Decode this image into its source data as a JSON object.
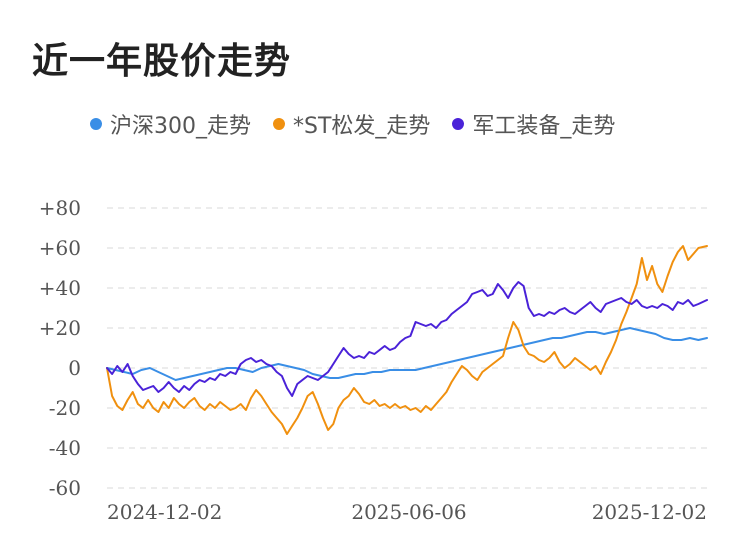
{
  "chart_data": {
    "type": "line",
    "title": "近一年股价走势",
    "xlabel": "",
    "ylabel": "",
    "ylim": [
      -60,
      80
    ],
    "yticks": [
      80,
      60,
      40,
      20,
      0,
      -20,
      -40,
      -60
    ],
    "ytick_labels": [
      "+80",
      "+60",
      "+40",
      "+20",
      "0",
      "-20",
      "-40",
      "-60"
    ],
    "xtick_labels": [
      "2024-12-02",
      "2025-06-06",
      "2025-12-02"
    ],
    "grid": true,
    "legend_position": "top-left",
    "series": [
      {
        "name": "沪深300_走势",
        "color": "#3a8ee6",
        "points": [
          [
            0,
            0
          ],
          [
            5,
            -1
          ],
          [
            10,
            -2
          ],
          [
            15,
            -3
          ],
          [
            20,
            -1
          ],
          [
            25,
            0
          ],
          [
            30,
            -2
          ],
          [
            35,
            -4
          ],
          [
            40,
            -6
          ],
          [
            45,
            -5
          ],
          [
            50,
            -4
          ],
          [
            55,
            -3
          ],
          [
            60,
            -2
          ],
          [
            65,
            -1
          ],
          [
            70,
            0
          ],
          [
            75,
            0
          ],
          [
            80,
            -1
          ],
          [
            85,
            -2
          ],
          [
            90,
            0
          ],
          [
            95,
            1
          ],
          [
            100,
            2
          ],
          [
            105,
            1
          ],
          [
            110,
            0
          ],
          [
            115,
            -1
          ],
          [
            120,
            -3
          ],
          [
            125,
            -4
          ],
          [
            130,
            -5
          ],
          [
            135,
            -5
          ],
          [
            140,
            -4
          ],
          [
            145,
            -3
          ],
          [
            150,
            -3
          ],
          [
            155,
            -2
          ],
          [
            160,
            -2
          ],
          [
            165,
            -1
          ],
          [
            170,
            -1
          ],
          [
            175,
            -1
          ],
          [
            180,
            -1
          ],
          [
            185,
            0
          ],
          [
            190,
            1
          ],
          [
            195,
            2
          ],
          [
            200,
            3
          ],
          [
            205,
            4
          ],
          [
            210,
            5
          ],
          [
            215,
            6
          ],
          [
            220,
            7
          ],
          [
            225,
            8
          ],
          [
            230,
            9
          ],
          [
            235,
            10
          ],
          [
            240,
            11
          ],
          [
            245,
            12
          ],
          [
            250,
            13
          ],
          [
            255,
            14
          ],
          [
            260,
            15
          ],
          [
            265,
            15
          ],
          [
            270,
            16
          ],
          [
            275,
            17
          ],
          [
            280,
            18
          ],
          [
            285,
            18
          ],
          [
            290,
            17
          ],
          [
            295,
            18
          ],
          [
            300,
            19
          ],
          [
            305,
            20
          ],
          [
            310,
            19
          ],
          [
            315,
            18
          ],
          [
            320,
            17
          ],
          [
            325,
            15
          ],
          [
            330,
            14
          ],
          [
            335,
            14
          ],
          [
            340,
            15
          ],
          [
            345,
            14
          ],
          [
            350,
            15
          ]
        ]
      },
      {
        "name": "*ST松发_走势",
        "color": "#f0900f",
        "points": [
          [
            0,
            0
          ],
          [
            3,
            -14
          ],
          [
            6,
            -19
          ],
          [
            9,
            -21
          ],
          [
            12,
            -16
          ],
          [
            15,
            -12
          ],
          [
            18,
            -18
          ],
          [
            21,
            -20
          ],
          [
            24,
            -16
          ],
          [
            27,
            -20
          ],
          [
            30,
            -22
          ],
          [
            33,
            -17
          ],
          [
            36,
            -20
          ],
          [
            39,
            -15
          ],
          [
            42,
            -18
          ],
          [
            45,
            -20
          ],
          [
            48,
            -17
          ],
          [
            51,
            -15
          ],
          [
            54,
            -19
          ],
          [
            57,
            -21
          ],
          [
            60,
            -18
          ],
          [
            63,
            -20
          ],
          [
            66,
            -17
          ],
          [
            69,
            -19
          ],
          [
            72,
            -21
          ],
          [
            75,
            -20
          ],
          [
            78,
            -18
          ],
          [
            81,
            -21
          ],
          [
            84,
            -15
          ],
          [
            87,
            -11
          ],
          [
            90,
            -14
          ],
          [
            93,
            -18
          ],
          [
            96,
            -22
          ],
          [
            99,
            -25
          ],
          [
            102,
            -28
          ],
          [
            105,
            -33
          ],
          [
            108,
            -29
          ],
          [
            111,
            -25
          ],
          [
            114,
            -20
          ],
          [
            117,
            -14
          ],
          [
            120,
            -12
          ],
          [
            123,
            -18
          ],
          [
            126,
            -25
          ],
          [
            129,
            -31
          ],
          [
            132,
            -28
          ],
          [
            135,
            -20
          ],
          [
            138,
            -16
          ],
          [
            141,
            -14
          ],
          [
            144,
            -10
          ],
          [
            147,
            -13
          ],
          [
            150,
            -17
          ],
          [
            153,
            -18
          ],
          [
            156,
            -16
          ],
          [
            159,
            -19
          ],
          [
            162,
            -18
          ],
          [
            165,
            -20
          ],
          [
            168,
            -18
          ],
          [
            171,
            -20
          ],
          [
            174,
            -19
          ],
          [
            177,
            -21
          ],
          [
            180,
            -20
          ],
          [
            183,
            -22
          ],
          [
            186,
            -19
          ],
          [
            189,
            -21
          ],
          [
            192,
            -18
          ],
          [
            195,
            -15
          ],
          [
            198,
            -12
          ],
          [
            201,
            -7
          ],
          [
            204,
            -3
          ],
          [
            207,
            1
          ],
          [
            210,
            -1
          ],
          [
            213,
            -4
          ],
          [
            216,
            -6
          ],
          [
            219,
            -2
          ],
          [
            222,
            0
          ],
          [
            225,
            2
          ],
          [
            228,
            4
          ],
          [
            231,
            6
          ],
          [
            234,
            15
          ],
          [
            237,
            23
          ],
          [
            240,
            19
          ],
          [
            243,
            11
          ],
          [
            246,
            7
          ],
          [
            249,
            6
          ],
          [
            252,
            4
          ],
          [
            255,
            3
          ],
          [
            258,
            5
          ],
          [
            261,
            8
          ],
          [
            264,
            3
          ],
          [
            267,
            0
          ],
          [
            270,
            2
          ],
          [
            273,
            5
          ],
          [
            276,
            3
          ],
          [
            279,
            1
          ],
          [
            282,
            -1
          ],
          [
            285,
            1
          ],
          [
            288,
            -3
          ],
          [
            291,
            3
          ],
          [
            294,
            8
          ],
          [
            297,
            14
          ],
          [
            300,
            22
          ],
          [
            303,
            28
          ],
          [
            306,
            35
          ],
          [
            309,
            42
          ],
          [
            312,
            55
          ],
          [
            315,
            44
          ],
          [
            318,
            51
          ],
          [
            321,
            42
          ],
          [
            324,
            38
          ],
          [
            327,
            46
          ],
          [
            330,
            53
          ],
          [
            333,
            58
          ],
          [
            336,
            61
          ],
          [
            339,
            54
          ],
          [
            342,
            57
          ],
          [
            345,
            60
          ],
          [
            350,
            61
          ]
        ]
      },
      {
        "name": "军工装备_走势",
        "color": "#4a22d8",
        "points": [
          [
            0,
            0
          ],
          [
            3,
            -3
          ],
          [
            6,
            1
          ],
          [
            9,
            -2
          ],
          [
            12,
            2
          ],
          [
            15,
            -4
          ],
          [
            18,
            -8
          ],
          [
            21,
            -11
          ],
          [
            24,
            -10
          ],
          [
            27,
            -9
          ],
          [
            30,
            -12
          ],
          [
            33,
            -10
          ],
          [
            36,
            -7
          ],
          [
            39,
            -10
          ],
          [
            42,
            -12
          ],
          [
            45,
            -9
          ],
          [
            48,
            -11
          ],
          [
            51,
            -8
          ],
          [
            54,
            -6
          ],
          [
            57,
            -7
          ],
          [
            60,
            -5
          ],
          [
            63,
            -6
          ],
          [
            66,
            -3
          ],
          [
            69,
            -4
          ],
          [
            72,
            -2
          ],
          [
            75,
            -3
          ],
          [
            78,
            2
          ],
          [
            81,
            4
          ],
          [
            84,
            5
          ],
          [
            87,
            3
          ],
          [
            90,
            4
          ],
          [
            93,
            2
          ],
          [
            96,
            1
          ],
          [
            99,
            -2
          ],
          [
            102,
            -4
          ],
          [
            105,
            -10
          ],
          [
            108,
            -14
          ],
          [
            111,
            -8
          ],
          [
            114,
            -6
          ],
          [
            117,
            -4
          ],
          [
            120,
            -5
          ],
          [
            123,
            -6
          ],
          [
            126,
            -4
          ],
          [
            129,
            -2
          ],
          [
            132,
            2
          ],
          [
            135,
            6
          ],
          [
            138,
            10
          ],
          [
            141,
            7
          ],
          [
            144,
            5
          ],
          [
            147,
            6
          ],
          [
            150,
            5
          ],
          [
            153,
            8
          ],
          [
            156,
            7
          ],
          [
            159,
            9
          ],
          [
            162,
            11
          ],
          [
            165,
            9
          ],
          [
            168,
            10
          ],
          [
            171,
            13
          ],
          [
            174,
            15
          ],
          [
            177,
            16
          ],
          [
            180,
            23
          ],
          [
            183,
            22
          ],
          [
            186,
            21
          ],
          [
            189,
            22
          ],
          [
            192,
            20
          ],
          [
            195,
            23
          ],
          [
            198,
            24
          ],
          [
            201,
            27
          ],
          [
            204,
            29
          ],
          [
            207,
            31
          ],
          [
            210,
            33
          ],
          [
            213,
            37
          ],
          [
            216,
            38
          ],
          [
            219,
            39
          ],
          [
            222,
            36
          ],
          [
            225,
            37
          ],
          [
            228,
            42
          ],
          [
            231,
            39
          ],
          [
            234,
            35
          ],
          [
            237,
            40
          ],
          [
            240,
            43
          ],
          [
            243,
            41
          ],
          [
            246,
            30
          ],
          [
            249,
            26
          ],
          [
            252,
            27
          ],
          [
            255,
            26
          ],
          [
            258,
            28
          ],
          [
            261,
            27
          ],
          [
            264,
            29
          ],
          [
            267,
            30
          ],
          [
            270,
            28
          ],
          [
            273,
            27
          ],
          [
            276,
            29
          ],
          [
            279,
            31
          ],
          [
            282,
            33
          ],
          [
            285,
            30
          ],
          [
            288,
            28
          ],
          [
            291,
            32
          ],
          [
            294,
            33
          ],
          [
            297,
            34
          ],
          [
            300,
            35
          ],
          [
            303,
            33
          ],
          [
            306,
            32
          ],
          [
            309,
            34
          ],
          [
            312,
            31
          ],
          [
            315,
            30
          ],
          [
            318,
            31
          ],
          [
            321,
            30
          ],
          [
            324,
            32
          ],
          [
            327,
            31
          ],
          [
            330,
            29
          ],
          [
            333,
            33
          ],
          [
            336,
            32
          ],
          [
            339,
            34
          ],
          [
            342,
            31
          ],
          [
            345,
            32
          ],
          [
            350,
            34
          ]
        ]
      }
    ]
  }
}
